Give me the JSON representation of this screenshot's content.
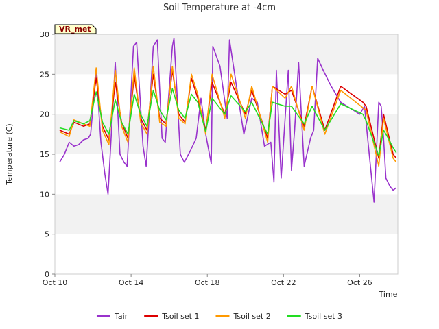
{
  "chart_data": {
    "type": "line",
    "title": "Soil Temperature at -4cm",
    "xlabel": "Time",
    "ylabel": "Temperature (C)",
    "site_label": "VR_met",
    "xlim": [
      "2023-10-10",
      "2023-10-28"
    ],
    "ylim": [
      0,
      30
    ],
    "yticks": [
      0,
      5,
      10,
      15,
      20,
      25,
      30
    ],
    "xticks": [
      {
        "date": "2023-10-10",
        "label": "Oct 10"
      },
      {
        "date": "2023-10-14",
        "label": "Oct 14"
      },
      {
        "date": "2023-10-18",
        "label": "Oct 18"
      },
      {
        "date": "2023-10-22",
        "label": "Oct 22"
      },
      {
        "date": "2023-10-26",
        "label": "Oct 26"
      }
    ],
    "grid": "horizontal bands",
    "legend_position": "bottom",
    "series": [
      {
        "name": "Tair",
        "color": "#9932cc",
        "x": [
          "2023-10-10 06:00",
          "2023-10-10 12:00",
          "2023-10-10 18:00",
          "2023-10-11 00:00",
          "2023-10-11 06:00",
          "2023-10-11 12:00",
          "2023-10-11 18:00",
          "2023-10-11 21:00",
          "2023-10-12 04:00",
          "2023-10-12 10:00",
          "2023-10-12 15:00",
          "2023-10-12 19:00",
          "2023-10-13 04:00",
          "2023-10-13 10:00",
          "2023-10-13 15:00",
          "2023-10-13 19:00",
          "2023-10-14 03:00",
          "2023-10-14 07:00",
          "2023-10-14 15:00",
          "2023-10-14 19:00",
          "2023-10-15 04:00",
          "2023-10-15 09:00",
          "2023-10-15 15:00",
          "2023-10-15 19:00",
          "2023-10-16 04:00",
          "2023-10-16 06:00",
          "2023-10-16 08:00",
          "2023-10-16 14:00",
          "2023-10-16 19:00",
          "2023-10-17 03:00",
          "2023-10-17 10:00",
          "2023-10-17 16:00",
          "2023-10-17 22:00",
          "2023-10-18 05:00",
          "2023-10-18 07:00",
          "2023-10-18 16:00",
          "2023-10-19 01:00",
          "2023-10-19 04:00",
          "2023-10-19 15:00",
          "2023-10-19 22:00",
          "2023-10-20 08:00",
          "2023-10-20 15:00",
          "2023-10-21 00:00",
          "2023-10-21 08:00",
          "2023-10-21 12:00",
          "2023-10-21 15:00",
          "2023-10-21 21:00",
          "2023-10-22 06:00",
          "2023-10-22 10:00",
          "2023-10-22 14:00",
          "2023-10-22 19:00",
          "2023-10-23 02:00",
          "2023-10-23 10:00",
          "2023-10-23 14:00",
          "2023-10-23 19:00",
          "2023-10-24 02:00",
          "2023-10-24 07:00",
          "2023-10-24 12:00",
          "2023-10-25 00:00",
          "2023-10-26 00:00",
          "2023-10-26 06:00",
          "2023-10-26 12:00",
          "2023-10-26 18:00",
          "2023-10-27 00:00",
          "2023-10-27 03:00",
          "2023-10-27 06:00",
          "2023-10-27 09:00",
          "2023-10-27 14:00",
          "2023-10-27 18:00",
          "2023-10-27 22:00"
        ],
        "values": [
          14.0,
          15.0,
          16.5,
          16.0,
          16.2,
          16.8,
          17.0,
          17.5,
          25.5,
          16.5,
          12.5,
          10.0,
          26.5,
          15.0,
          14.0,
          13.5,
          28.5,
          29.0,
          16.0,
          13.5,
          28.5,
          29.3,
          17.0,
          16.5,
          28.5,
          29.5,
          26.0,
          15.0,
          14.0,
          15.5,
          17.0,
          22.0,
          17.5,
          13.8,
          28.5,
          26.0,
          19.5,
          29.3,
          22.0,
          17.5,
          22.0,
          21.5,
          16.0,
          16.5,
          11.5,
          25.5,
          12.0,
          25.5,
          13.0,
          18.0,
          26.5,
          13.5,
          17.0,
          18.0,
          27.0,
          25.5,
          24.5,
          23.5,
          21.5,
          20.0,
          21.0,
          15.0,
          9.0,
          21.5,
          21.0,
          17.0,
          12.0,
          11.0,
          10.5,
          10.8
        ]
      },
      {
        "name": "Tsoil set 1",
        "color": "#dd0000",
        "x": [
          "2023-10-10 06:00",
          "2023-10-10 18:00",
          "2023-10-11 00:00",
          "2023-10-11 12:00",
          "2023-10-11 20:00",
          "2023-10-12 04:00",
          "2023-10-12 12:00",
          "2023-10-12 20:00",
          "2023-10-13 04:00",
          "2023-10-13 12:00",
          "2023-10-13 20:00",
          "2023-10-14 04:00",
          "2023-10-14 12:00",
          "2023-10-14 20:00",
          "2023-10-15 04:00",
          "2023-10-15 12:00",
          "2023-10-15 20:00",
          "2023-10-16 04:00",
          "2023-10-16 12:00",
          "2023-10-16 20:00",
          "2023-10-17 04:00",
          "2023-10-17 12:00",
          "2023-10-17 22:00",
          "2023-10-18 06:00",
          "2023-10-18 22:00",
          "2023-10-19 06:00",
          "2023-10-20 00:00",
          "2023-10-20 08:00",
          "2023-10-21 04:00",
          "2023-10-21 10:00",
          "2023-10-22 02:00",
          "2023-10-22 10:00",
          "2023-10-23 02:00",
          "2023-10-23 12:00",
          "2023-10-24 04:00",
          "2023-10-25 00:00",
          "2023-10-26 04:00",
          "2023-10-26 08:00",
          "2023-10-27 00:00",
          "2023-10-27 06:00",
          "2023-10-27 12:00",
          "2023-10-27 18:00",
          "2023-10-27 22:00"
        ],
        "values": [
          18.0,
          17.5,
          19.0,
          18.5,
          18.8,
          24.5,
          18.5,
          16.8,
          24.0,
          19.0,
          17.0,
          24.8,
          19.5,
          18.0,
          25.0,
          19.5,
          18.8,
          25.5,
          20.0,
          19.0,
          24.5,
          22.0,
          18.0,
          24.0,
          20.0,
          24.0,
          20.0,
          23.0,
          17.0,
          23.5,
          22.5,
          23.0,
          18.5,
          23.5,
          18.0,
          23.5,
          21.5,
          21.0,
          14.5,
          20.0,
          17.5,
          15.0,
          14.5
        ]
      },
      {
        "name": "Tsoil set 2",
        "color": "#ff9900",
        "x": [
          "2023-10-10 06:00",
          "2023-10-10 18:00",
          "2023-10-11 00:00",
          "2023-10-11 12:00",
          "2023-10-11 20:00",
          "2023-10-12 04:00",
          "2023-10-12 12:00",
          "2023-10-12 20:00",
          "2023-10-13 04:00",
          "2023-10-13 12:00",
          "2023-10-13 20:00",
          "2023-10-14 04:00",
          "2023-10-14 12:00",
          "2023-10-14 20:00",
          "2023-10-15 04:00",
          "2023-10-15 12:00",
          "2023-10-15 20:00",
          "2023-10-16 04:00",
          "2023-10-16 12:00",
          "2023-10-16 20:00",
          "2023-10-17 04:00",
          "2023-10-17 12:00",
          "2023-10-17 22:00",
          "2023-10-18 06:00",
          "2023-10-18 22:00",
          "2023-10-19 06:00",
          "2023-10-20 00:00",
          "2023-10-20 08:00",
          "2023-10-21 04:00",
          "2023-10-21 10:00",
          "2023-10-22 02:00",
          "2023-10-22 10:00",
          "2023-10-23 02:00",
          "2023-10-23 12:00",
          "2023-10-24 04:00",
          "2023-10-25 00:00",
          "2023-10-26 04:00",
          "2023-10-26 08:00",
          "2023-10-27 00:00",
          "2023-10-27 06:00",
          "2023-10-27 12:00",
          "2023-10-27 18:00",
          "2023-10-27 22:00"
        ],
        "values": [
          17.8,
          17.2,
          19.3,
          18.8,
          18.5,
          25.8,
          18.0,
          16.2,
          25.5,
          18.5,
          16.5,
          25.8,
          19.0,
          17.5,
          26.0,
          19.0,
          18.5,
          26.0,
          19.5,
          18.8,
          25.0,
          22.5,
          17.5,
          25.0,
          19.5,
          25.0,
          19.5,
          23.5,
          16.5,
          23.5,
          22.0,
          23.5,
          18.0,
          23.5,
          17.5,
          23.0,
          20.8,
          20.5,
          13.5,
          19.5,
          17.0,
          14.5,
          14.0
        ]
      },
      {
        "name": "Tsoil set 3",
        "color": "#22dd22",
        "x": [
          "2023-10-10 06:00",
          "2023-10-10 18:00",
          "2023-10-11 00:00",
          "2023-10-11 12:00",
          "2023-10-11 20:00",
          "2023-10-12 04:00",
          "2023-10-12 12:00",
          "2023-10-12 20:00",
          "2023-10-13 04:00",
          "2023-10-13 12:00",
          "2023-10-13 20:00",
          "2023-10-14 04:00",
          "2023-10-14 12:00",
          "2023-10-14 20:00",
          "2023-10-15 04:00",
          "2023-10-15 12:00",
          "2023-10-15 20:00",
          "2023-10-16 04:00",
          "2023-10-16 12:00",
          "2023-10-16 20:00",
          "2023-10-17 04:00",
          "2023-10-17 12:00",
          "2023-10-17 22:00",
          "2023-10-18 06:00",
          "2023-10-18 22:00",
          "2023-10-19 06:00",
          "2023-10-20 00:00",
          "2023-10-20 08:00",
          "2023-10-21 04:00",
          "2023-10-21 10:00",
          "2023-10-22 02:00",
          "2023-10-22 10:00",
          "2023-10-23 02:00",
          "2023-10-23 12:00",
          "2023-10-24 04:00",
          "2023-10-25 00:00",
          "2023-10-26 04:00",
          "2023-10-26 08:00",
          "2023-10-27 00:00",
          "2023-10-27 06:00",
          "2023-10-27 12:00",
          "2023-10-27 18:00",
          "2023-10-27 22:00"
        ],
        "values": [
          18.3,
          18.0,
          19.2,
          18.8,
          19.2,
          22.8,
          19.0,
          17.5,
          21.8,
          19.0,
          17.5,
          22.5,
          20.0,
          18.5,
          23.0,
          20.5,
          19.3,
          23.2,
          20.5,
          19.5,
          22.5,
          21.5,
          17.8,
          22.0,
          20.0,
          22.3,
          20.3,
          21.5,
          17.5,
          21.5,
          21.0,
          21.0,
          18.8,
          21.0,
          18.0,
          21.3,
          20.0,
          19.2,
          14.8,
          18.0,
          17.0,
          15.8,
          15.2
        ]
      }
    ]
  }
}
